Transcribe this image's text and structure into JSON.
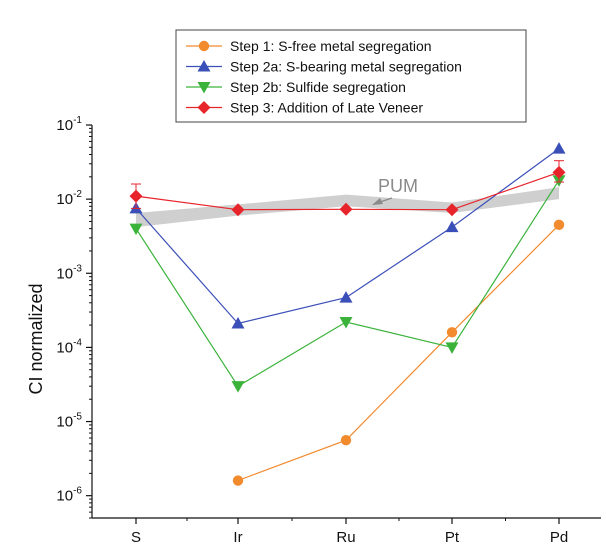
{
  "chart_data": {
    "type": "line",
    "title": "",
    "xlabel": "",
    "ylabel": "CI normalized",
    "y_scale": "log",
    "ylim": [
      5e-07,
      0.1
    ],
    "y_ticks": [
      {
        "value": 1e-06,
        "base": "10",
        "exp": "-6"
      },
      {
        "value": 1e-05,
        "base": "10",
        "exp": "-5"
      },
      {
        "value": 0.0001,
        "base": "10",
        "exp": "-4"
      },
      {
        "value": 0.001,
        "base": "10",
        "exp": "-3"
      },
      {
        "value": 0.01,
        "base": "10",
        "exp": "-2"
      },
      {
        "value": 0.1,
        "base": "10",
        "exp": "-1"
      }
    ],
    "categories": [
      "S",
      "Ir",
      "Ru",
      "Pt",
      "Pd"
    ],
    "legend_position": "top",
    "series": [
      {
        "name": "Step 1:   S-free metal segregation",
        "color": "#f28a2e",
        "marker": "circle",
        "values": [
          null,
          1.6e-06,
          5.6e-06,
          0.00016,
          0.0045
        ]
      },
      {
        "name": "Step 2a: S-bearing metal segregation",
        "color": "#3b4fb8",
        "marker": "triangle-up",
        "values": [
          0.0075,
          0.00021,
          0.00047,
          0.0042,
          0.048
        ]
      },
      {
        "name": "Step 2b: Sulfide segregation",
        "color": "#3bb33b",
        "marker": "triangle-down",
        "values": [
          0.004,
          3e-05,
          0.00022,
          0.0001,
          0.018
        ]
      },
      {
        "name": "Step 3:   Addition of Late Veneer",
        "color": "#e8242b",
        "marker": "diamond",
        "values": [
          0.011,
          0.0072,
          0.0073,
          0.0072,
          0.023
        ],
        "err_upper": [
          0.016,
          null,
          null,
          null,
          0.033
        ],
        "err_lower": [
          0.0075,
          null,
          null,
          null,
          0.017
        ]
      }
    ],
    "pum_band": {
      "label": "PUM",
      "color": "#cfcfcf",
      "upper": [
        0.0065,
        0.0085,
        0.0115,
        0.009,
        0.0145
      ],
      "lower": [
        0.0042,
        0.006,
        0.008,
        0.0065,
        0.01
      ]
    }
  }
}
